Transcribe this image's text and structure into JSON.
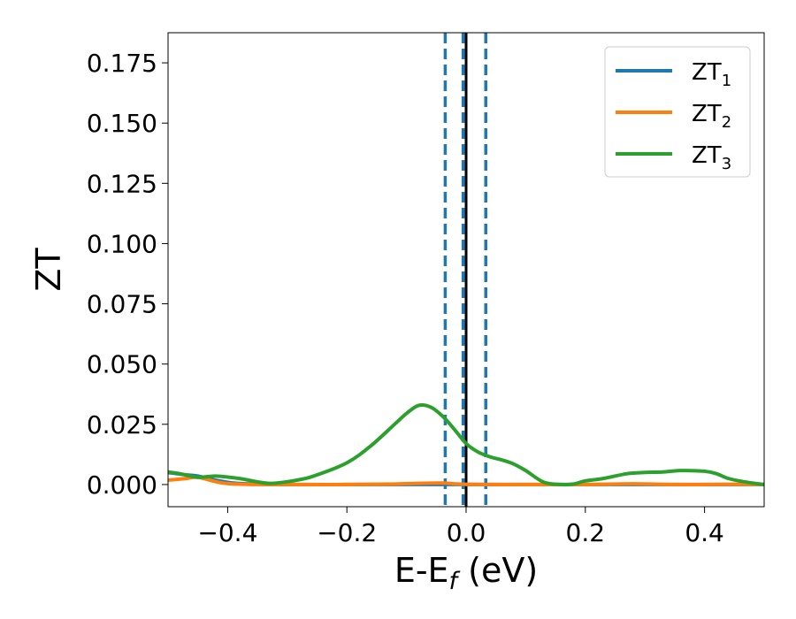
{
  "chart_data": {
    "type": "line",
    "title": "",
    "xlabel": "E-E_f (eV)",
    "ylabel": "ZT",
    "xlim": [
      -0.5,
      0.5
    ],
    "ylim": [
      -0.0092,
      0.1875
    ],
    "x_ticks": [
      -0.4,
      -0.2,
      0.0,
      0.2,
      0.4
    ],
    "x_tick_labels": [
      "−0.4",
      "−0.2",
      "0.0",
      "0.2",
      "0.4"
    ],
    "y_ticks": [
      0.0,
      0.025,
      0.05,
      0.075,
      0.1,
      0.125,
      0.15,
      0.175
    ],
    "y_tick_labels": [
      "0.000",
      "0.025",
      "0.050",
      "0.075",
      "0.100",
      "0.125",
      "0.150",
      "0.175"
    ],
    "grid": false,
    "legend_position": "top-right",
    "series": [
      {
        "name": "ZT",
        "name_subscript": "1",
        "color": "#1f77b4",
        "x": [
          -0.5,
          -0.47,
          -0.45,
          -0.42,
          -0.39,
          -0.36,
          -0.33,
          -0.3,
          -0.2,
          -0.1,
          0.0,
          0.1,
          0.2,
          0.3,
          0.4,
          0.5
        ],
        "y": [
          0.005,
          0.004,
          0.0035,
          0.0018,
          0.0006,
          0.0002,
          0.0002,
          0.0,
          0.0,
          0.0,
          0.0,
          0.0,
          0.0,
          0.0,
          0.0,
          0.0
        ]
      },
      {
        "name": "ZT",
        "name_subscript": "2",
        "color": "#ff7f0e",
        "x": [
          -0.5,
          -0.47,
          -0.45,
          -0.42,
          -0.4,
          -0.35,
          -0.3,
          -0.2,
          -0.12,
          -0.08,
          -0.04,
          -0.02,
          0.0,
          0.05,
          0.1,
          0.2,
          0.28,
          0.35,
          0.4,
          0.45,
          0.5
        ],
        "y": [
          0.0018,
          0.0025,
          0.003,
          0.0012,
          0.0004,
          0.0,
          0.0,
          0.0,
          0.0002,
          0.0005,
          0.0006,
          0.0003,
          0.0001,
          0.0,
          0.0,
          0.0,
          0.0003,
          0.0,
          0.0,
          0.0001,
          0.0
        ]
      },
      {
        "name": "ZT",
        "name_subscript": "3",
        "color": "#2ca02c",
        "x": [
          -0.5,
          -0.48,
          -0.45,
          -0.42,
          -0.38,
          -0.33,
          -0.28,
          -0.25,
          -0.2,
          -0.16,
          -0.12,
          -0.1,
          -0.08,
          -0.06,
          -0.04,
          -0.02,
          0.0,
          0.02,
          0.04,
          0.06,
          0.08,
          0.1,
          0.13,
          0.16,
          0.18,
          0.2,
          0.23,
          0.27,
          0.3,
          0.33,
          0.36,
          0.4,
          0.42,
          0.44,
          0.47,
          0.5
        ],
        "y": [
          0.0052,
          0.0045,
          0.003,
          0.0035,
          0.0025,
          0.0005,
          0.002,
          0.004,
          0.009,
          0.016,
          0.025,
          0.0295,
          0.0328,
          0.0322,
          0.0285,
          0.023,
          0.017,
          0.0135,
          0.0115,
          0.0102,
          0.0085,
          0.0058,
          0.001,
          0.0,
          0.0002,
          0.0015,
          0.0025,
          0.0045,
          0.005,
          0.0052,
          0.0058,
          0.0055,
          0.0045,
          0.0025,
          0.001,
          0.0
        ]
      }
    ],
    "vlines": [
      {
        "x": -0.035,
        "style": "dashed",
        "color": "#1f77b4"
      },
      {
        "x": 0.0,
        "style": "solid",
        "color": "#000000"
      },
      {
        "x": -0.005,
        "style": "dashed",
        "color": "#1f77b4"
      },
      {
        "x": 0.033,
        "style": "dashed",
        "color": "#1f77b4"
      }
    ]
  }
}
